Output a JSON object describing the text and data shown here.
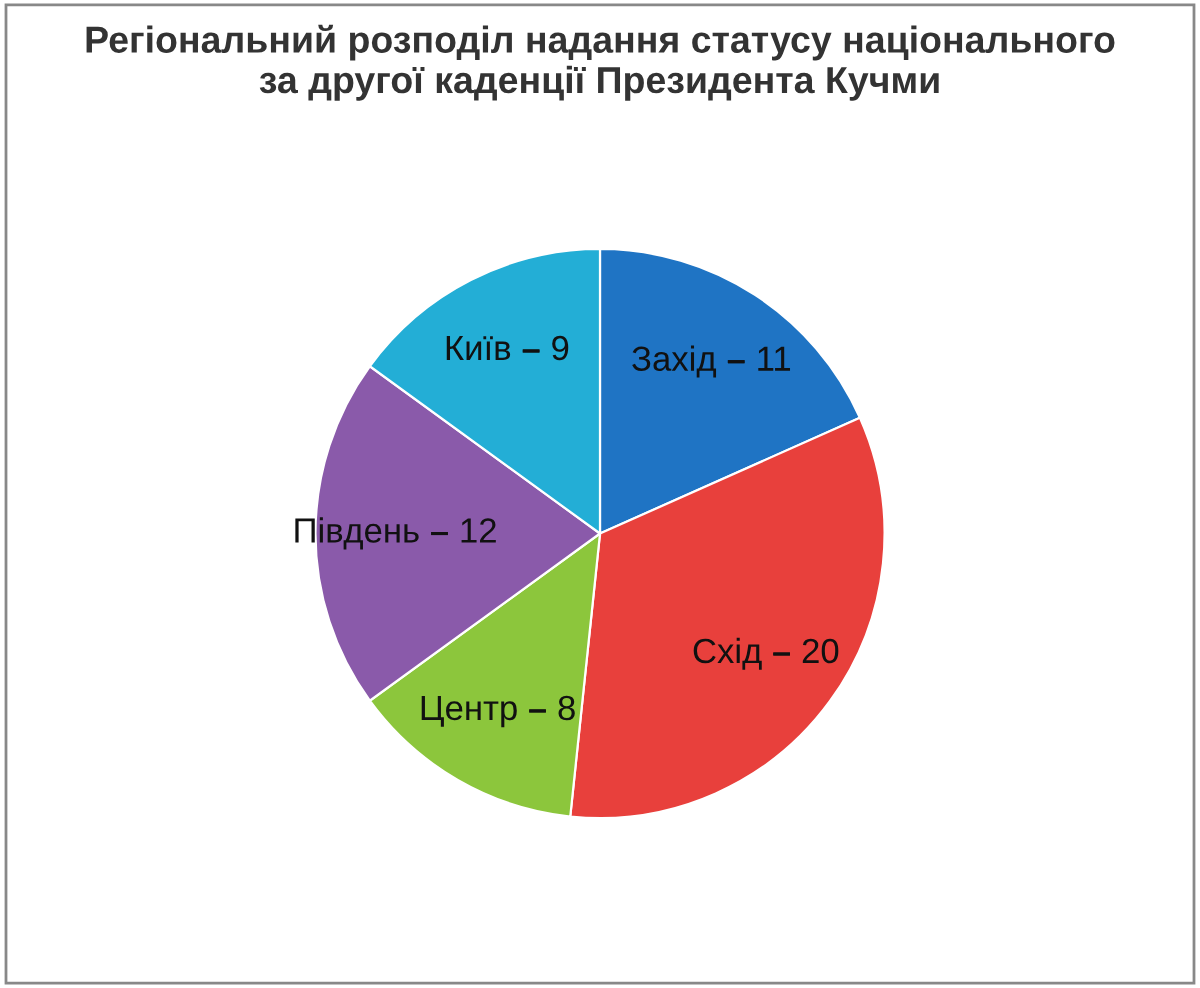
{
  "chart_data": {
    "type": "pie",
    "title": "Регіональний розподіл надання статусу національного\nза другої каденції Президента Кучми",
    "categories": [
      "Захід",
      "Схід",
      "Центр",
      "Південь",
      "Київ"
    ],
    "values": [
      11,
      20,
      8,
      12,
      9
    ],
    "colors": [
      "#1f74c4",
      "#e8403c",
      "#8cc63c",
      "#8a5aaa",
      "#23aed6"
    ],
    "data_labels": true
  }
}
